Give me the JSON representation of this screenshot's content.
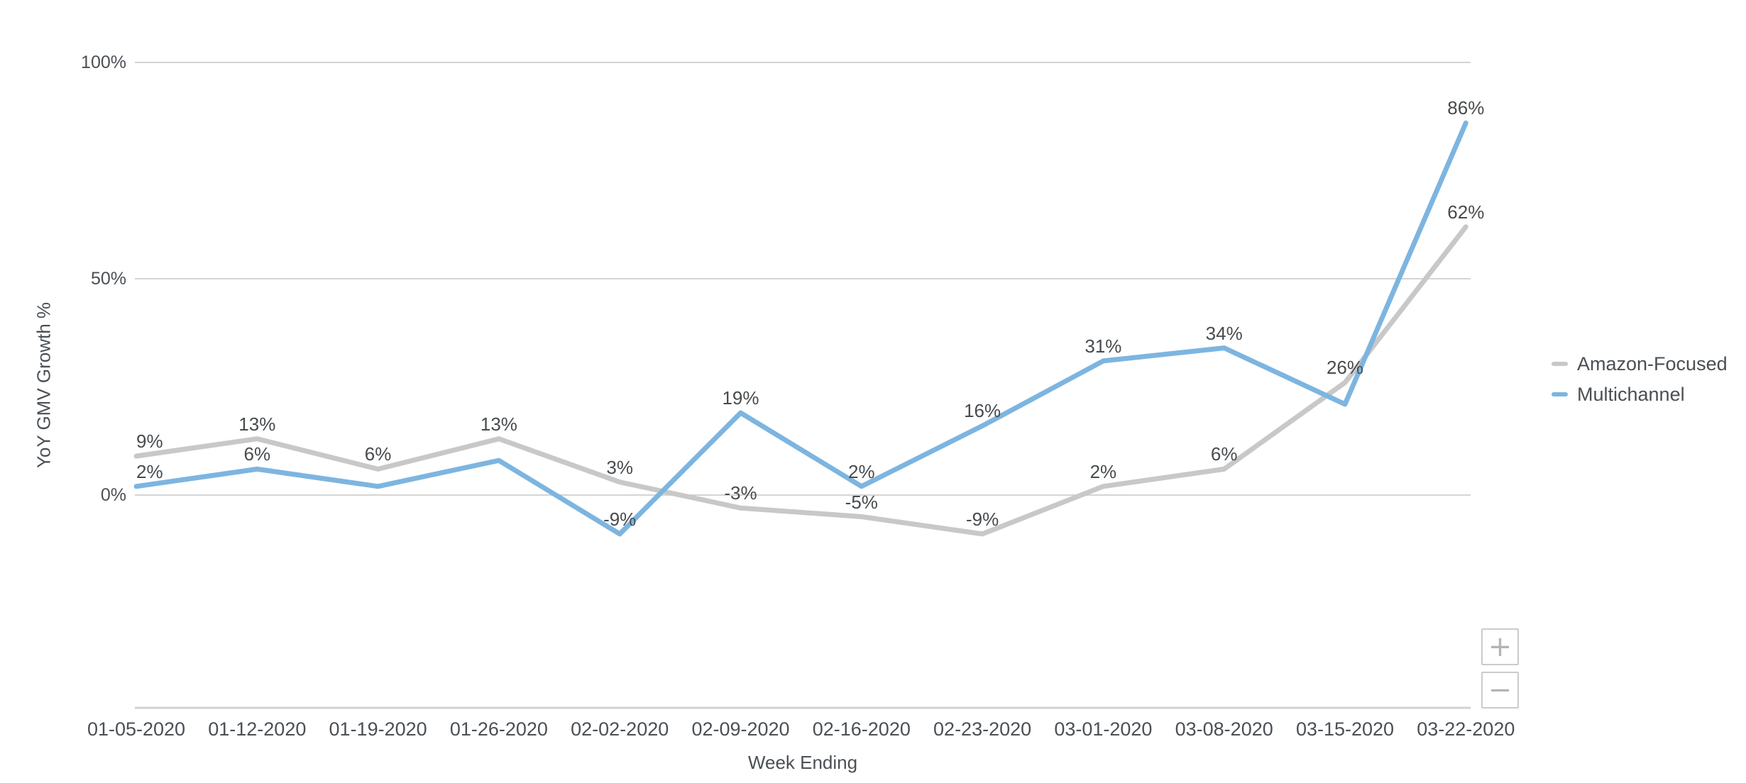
{
  "chart_data": {
    "type": "line",
    "title": "",
    "xlabel": "Week Ending",
    "ylabel": "YoY GMV Growth %",
    "categories": [
      "01-05-2020",
      "01-12-2020",
      "01-19-2020",
      "01-26-2020",
      "02-02-2020",
      "02-09-2020",
      "02-16-2020",
      "02-23-2020",
      "03-01-2020",
      "03-08-2020",
      "03-15-2020",
      "03-22-2020"
    ],
    "series": [
      {
        "name": "Amazon-Focused",
        "color": "#c8c8c8",
        "values": [
          9,
          13,
          6,
          13,
          3,
          -3,
          -5,
          -9,
          2,
          6,
          26,
          62
        ],
        "point_labels": [
          "9%",
          "13%",
          "6%",
          "13%",
          "3%",
          "-3%",
          "-5%",
          "-9%",
          "2%",
          "6%",
          "26%",
          "62%"
        ]
      },
      {
        "name": "Multichannel",
        "color": "#7db5e0",
        "values": [
          2,
          6,
          2,
          8,
          -9,
          19,
          2,
          16,
          31,
          34,
          21,
          86
        ],
        "point_labels": [
          "2%",
          "6%",
          null,
          null,
          "-9%",
          "19%",
          "2%",
          "16%",
          "31%",
          "34%",
          null,
          "86%"
        ]
      }
    ],
    "y_ticks": [
      {
        "value": 0,
        "label": "0%"
      },
      {
        "value": 50,
        "label": "50%"
      },
      {
        "value": 100,
        "label": "100%"
      }
    ],
    "ylim": [
      -49,
      100
    ],
    "grid": true,
    "grid_color": "#d4d4d4",
    "axis_line_color": "#d2d2d2",
    "legend_position": "right"
  },
  "controls": {
    "zoom_in_label": "+",
    "zoom_out_label": "−"
  }
}
